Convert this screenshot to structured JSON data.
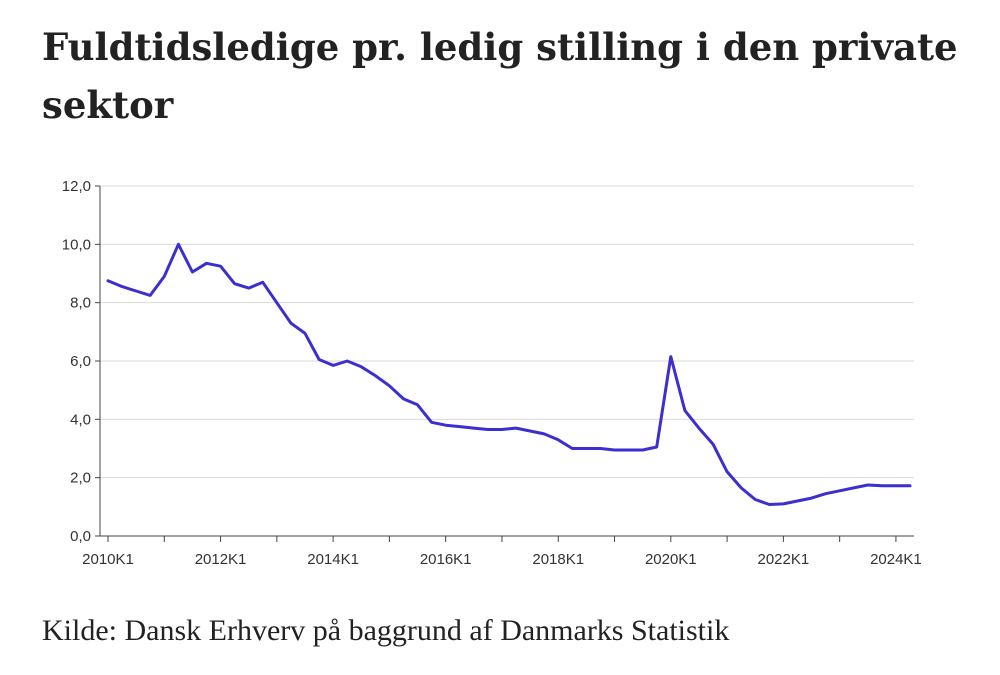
{
  "title": "Fuldtidsledige pr. ledig stilling i den private sektor",
  "source": "Kilde: Dansk Erhverv på baggrund af Danmarks Statistik",
  "chart_data": {
    "type": "line",
    "title": "Fuldtidsledige pr. ledig stilling i den private sektor",
    "xlabel": "",
    "ylabel": "",
    "ylim": [
      0,
      12
    ],
    "yticks": [
      "0,0",
      "2,0",
      "4,0",
      "6,0",
      "8,0",
      "10,0",
      "12,0"
    ],
    "ytick_values": [
      0,
      2,
      4,
      6,
      8,
      10,
      12
    ],
    "xticks": [
      "2010K1",
      "2012K1",
      "2014K1",
      "2016K1",
      "2018K1",
      "2020K1",
      "2022K1",
      "2024K1"
    ],
    "xtick_index": [
      0,
      8,
      16,
      24,
      32,
      40,
      48,
      56
    ],
    "grid": true,
    "color": "#3b2fd0",
    "series": [
      {
        "name": "Fuldtidsledige pr. ledig stilling",
        "values": [
          8.75,
          8.55,
          8.4,
          8.25,
          8.9,
          10.0,
          9.05,
          9.35,
          9.25,
          8.65,
          8.5,
          8.7,
          8.0,
          7.3,
          6.95,
          6.05,
          5.85,
          6.0,
          5.8,
          5.5,
          5.15,
          4.7,
          4.5,
          3.9,
          3.8,
          3.75,
          3.7,
          3.65,
          3.65,
          3.7,
          3.6,
          3.5,
          3.3,
          3.0,
          3.0,
          3.0,
          2.95,
          2.95,
          2.95,
          3.05,
          6.15,
          4.3,
          3.7,
          3.15,
          2.2,
          1.65,
          1.25,
          1.08,
          1.1,
          1.2,
          1.3,
          1.45,
          1.55,
          1.65,
          1.75,
          1.72,
          1.72,
          1.72
        ]
      }
    ]
  }
}
